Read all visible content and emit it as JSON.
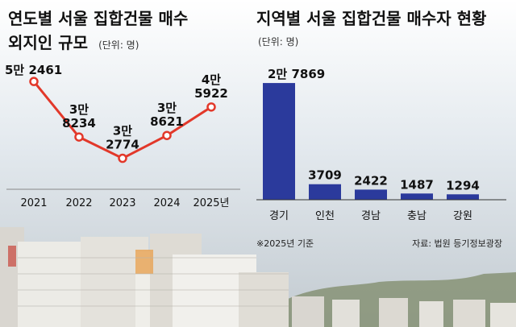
{
  "colors": {
    "line": "#e2382a",
    "bar": "#2b3a9c",
    "sky_top": "#dbe4ea",
    "sky_bottom": "#c6cdd2"
  },
  "chart_data": [
    {
      "type": "line",
      "title": [
        "연도별 서울 집합건물 매수",
        "외지인 규모"
      ],
      "unit": "(단위: 명)",
      "categories": [
        "2021",
        "2022",
        "2023",
        "2024",
        "2025년"
      ],
      "values": [
        52461,
        38234,
        32774,
        38621,
        45922
      ],
      "value_labels": [
        [
          "5만 2461"
        ],
        [
          "3만",
          "8234"
        ],
        [
          "3만",
          "2774"
        ],
        [
          "3만",
          "8621"
        ],
        [
          "4만",
          "5922"
        ]
      ],
      "ylim": [
        30000,
        56000
      ],
      "grid": false
    },
    {
      "type": "bar",
      "title": [
        "지역별 서울 집합건물 매수자 현황"
      ],
      "unit": "(단위: 명)",
      "categories": [
        "경기",
        "인천",
        "경남",
        "충남",
        "강원"
      ],
      "values": [
        27869,
        3709,
        2422,
        1487,
        1294
      ],
      "value_labels": [
        "2만 7869",
        "3709",
        "2422",
        "1487",
        "1294"
      ],
      "ylim": [
        0,
        30000
      ],
      "grid": false
    }
  ],
  "footnote": "※2025년 기준",
  "source": "자료: 법원 등기정보광장"
}
